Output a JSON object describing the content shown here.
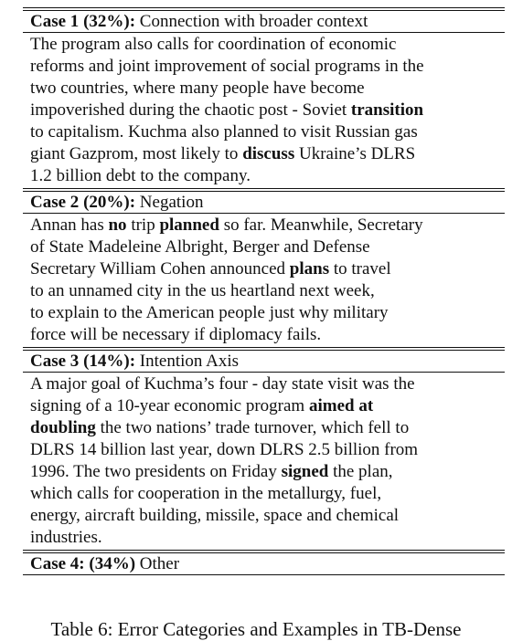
{
  "table": {
    "cases": [
      {
        "label": "Case 1",
        "percent": "(32%):",
        "category": "Connection with broader context",
        "lines": [
          [
            {
              "t": "The program also calls for coordination of economic",
              "b": false
            }
          ],
          [
            {
              "t": "reforms and joint improvement of social programs in the",
              "b": false
            }
          ],
          [
            {
              "t": "two countries, where many people have become",
              "b": false
            }
          ],
          [
            {
              "t": "impoverished during the chaotic post - Soviet ",
              "b": false
            },
            {
              "t": "transition",
              "b": true
            }
          ],
          [
            {
              "t": "to capitalism. Kuchma also planned to visit Russian gas",
              "b": false
            }
          ],
          [
            {
              "t": "giant Gazprom, most likely to ",
              "b": false
            },
            {
              "t": "discuss",
              "b": true
            },
            {
              "t": " Ukraine’s DLRS",
              "b": false
            }
          ],
          [
            {
              "t": "1.2 billion debt to the company.",
              "b": false
            }
          ]
        ]
      },
      {
        "label": "Case 2",
        "percent": "(20%):",
        "category": "Negation",
        "lines": [
          [
            {
              "t": "Annan has ",
              "b": false
            },
            {
              "t": "no",
              "b": true
            },
            {
              "t": " trip ",
              "b": false
            },
            {
              "t": "planned",
              "b": true
            },
            {
              "t": " so far. Meanwhile, Secretary",
              "b": false
            }
          ],
          [
            {
              "t": "of State Madeleine Albright, Berger and Defense",
              "b": false
            }
          ],
          [
            {
              "t": "Secretary William Cohen announced ",
              "b": false
            },
            {
              "t": "plans",
              "b": true
            },
            {
              "t": " to travel",
              "b": false
            }
          ],
          [
            {
              "t": "to an unnamed city in the us heartland next week,",
              "b": false
            }
          ],
          [
            {
              "t": "to explain to the American people just why military",
              "b": false
            }
          ],
          [
            {
              "t": "force will be necessary if diplomacy fails.",
              "b": false
            }
          ]
        ]
      },
      {
        "label": "Case 3",
        "percent": "(14%):",
        "category": "Intention Axis",
        "lines": [
          [
            {
              "t": "A major goal of Kuchma’s four - day state visit was the",
              "b": false
            }
          ],
          [
            {
              "t": "signing of a 10-year economic program ",
              "b": false
            },
            {
              "t": "aimed at",
              "b": true
            }
          ],
          [
            {
              "t": "doubling",
              "b": true
            },
            {
              "t": " the two nations’ trade turnover, which fell to",
              "b": false
            }
          ],
          [
            {
              "t": "DLRS 14 billion last year, down DLRS 2.5 billion from",
              "b": false
            }
          ],
          [
            {
              "t": "1996. The two presidents on Friday ",
              "b": false
            },
            {
              "t": "signed",
              "b": true
            },
            {
              "t": " the plan,",
              "b": false
            }
          ],
          [
            {
              "t": "which calls for cooperation in the metallurgy, fuel,",
              "b": false
            }
          ],
          [
            {
              "t": "energy, aircraft building, missile, space and chemical",
              "b": false
            }
          ],
          [
            {
              "t": "industries.",
              "b": false
            }
          ]
        ]
      },
      {
        "label": "Case 4:",
        "percent": "(34%)",
        "category": "Other",
        "lines": []
      }
    ]
  },
  "caption": "Table 6: Error Categories and Examples in TB-Dense"
}
